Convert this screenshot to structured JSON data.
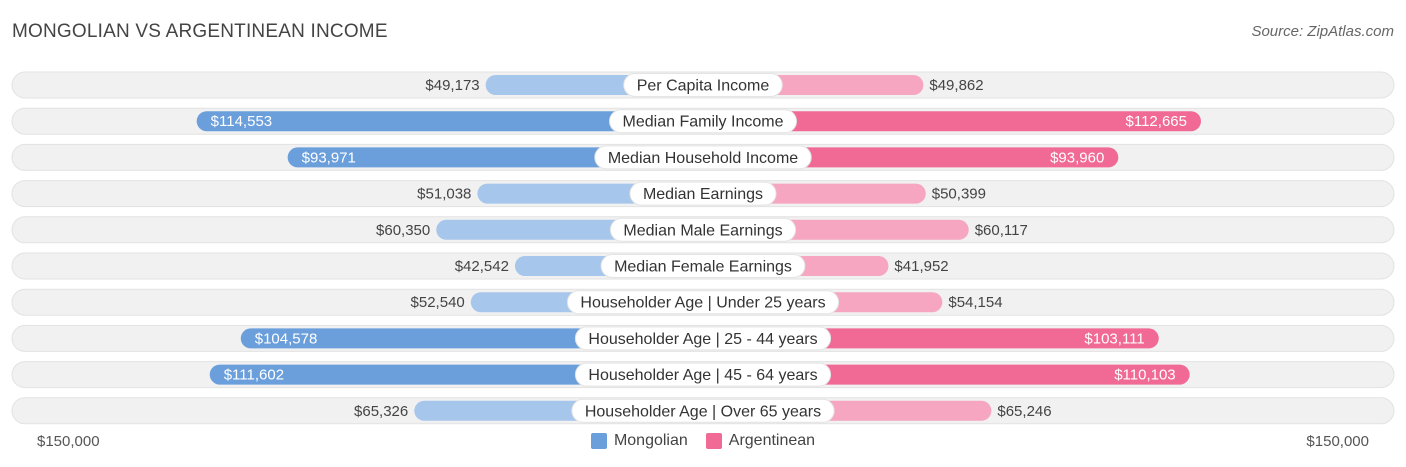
{
  "header": {
    "title": "MONGOLIAN VS ARGENTINEAN INCOME",
    "source": "Source: ZipAtlas.com"
  },
  "axis": {
    "left_label": "$150,000",
    "right_label": "$150,000"
  },
  "legend": {
    "items": [
      {
        "label": "Mongolian",
        "color": "#6a9fdc"
      },
      {
        "label": "Argentinean",
        "color": "#f06a95"
      }
    ]
  },
  "colors": {
    "left_strong": "#6a9fdc",
    "left_light": "#a7c6eb",
    "right_strong": "#f06a95",
    "right_light": "#f6a6c0",
    "track": "#f1f1f1",
    "track_border": "#e2e2e2"
  },
  "chart_data": {
    "type": "bar",
    "orientation": "horizontal-diverging",
    "title": "MONGOLIAN VS ARGENTINEAN INCOME",
    "xlim": [
      0,
      150000
    ],
    "categories": [
      "Per Capita Income",
      "Median Family Income",
      "Median Household Income",
      "Median Earnings",
      "Median Male Earnings",
      "Median Female Earnings",
      "Householder Age | Under 25 years",
      "Householder Age | 25 - 44 years",
      "Householder Age | 45 - 64 years",
      "Householder Age | Over 65 years"
    ],
    "series": [
      {
        "name": "Mongolian",
        "side": "left",
        "values": [
          49173,
          114553,
          93971,
          51038,
          60350,
          42542,
          52540,
          104578,
          111602,
          65326
        ],
        "labels": [
          "$49,173",
          "$114,553",
          "$93,971",
          "$51,038",
          "$60,350",
          "$42,542",
          "$52,540",
          "$104,578",
          "$111,602",
          "$65,326"
        ]
      },
      {
        "name": "Argentinean",
        "side": "right",
        "values": [
          49862,
          112665,
          93960,
          50399,
          60117,
          41952,
          54154,
          103111,
          110103,
          65246
        ],
        "labels": [
          "$49,862",
          "$112,665",
          "$93,960",
          "$50,399",
          "$60,117",
          "$41,952",
          "$54,154",
          "$103,111",
          "$110,103",
          "$65,246"
        ]
      }
    ]
  }
}
